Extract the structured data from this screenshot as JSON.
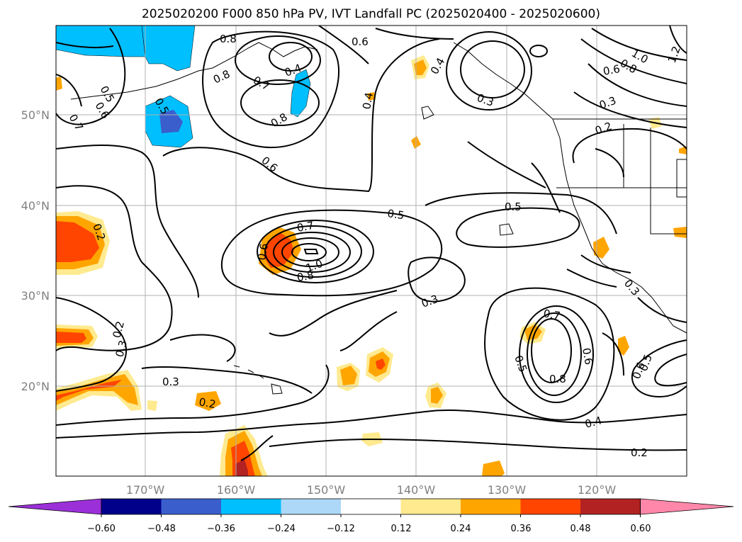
{
  "title": "2025020200 F000 850 hPa PV, IVT Landfall PC (2025020400 - 2025020600)",
  "map": {
    "lat_labels": [
      "50°N",
      "40°N",
      "30°N",
      "20°N"
    ],
    "lon_labels": [
      "170°W",
      "160°W",
      "150°W",
      "140°W",
      "130°W",
      "120°W"
    ],
    "contour_labels": [
      "0.8",
      "0.6",
      "0.4",
      "0.8",
      "0.7",
      "0.5",
      "0.6",
      "0.7",
      "0.5",
      "0.8",
      "0.6",
      "0.4",
      "0.4",
      "0.3",
      "1.0",
      "0.8",
      "1.2",
      "0.6",
      "0.3",
      "0.2",
      "0.2",
      "0.7",
      "0.6",
      "0.8",
      "1.0",
      "0.5",
      "0.5",
      "0.3",
      "0.2",
      "0.3",
      "0.3",
      "0.7",
      "0.6",
      "0.5",
      "0.8",
      "0.5",
      "0.6",
      "0.4",
      "0.3",
      "0.2",
      "0.2"
    ]
  },
  "colorbar": {
    "ticks": [
      "−0.60",
      "−0.48",
      "−0.36",
      "−0.24",
      "−0.12",
      "0.12",
      "0.24",
      "0.36",
      "0.48",
      "0.60"
    ],
    "colors": [
      "#9b30d9",
      "#00008b",
      "#3a5fcd",
      "#00bfff",
      "#add8f7",
      "#ffffff",
      "#ffea8f",
      "#ffa500",
      "#ff4500",
      "#b22222",
      "#ff88aa"
    ]
  }
}
